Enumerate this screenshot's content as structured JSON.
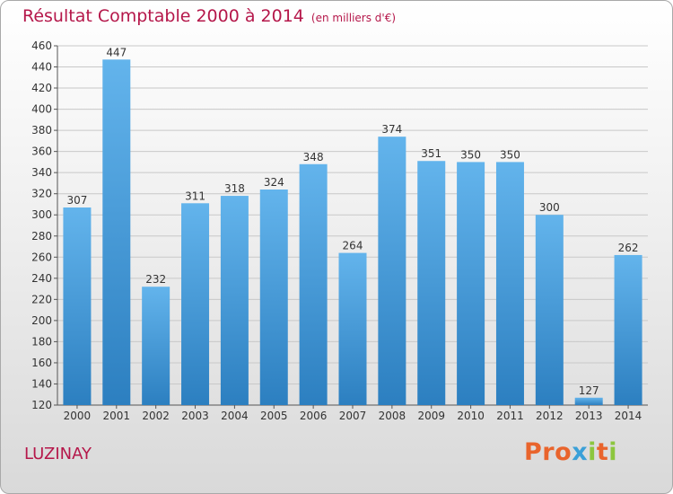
{
  "title": "Résultat Comptable 2000 à 2014",
  "unit": "(en milliers d'€)",
  "place": "LUZINAY",
  "logo": {
    "text": "Proxiti",
    "colors": [
      "#e9642c",
      "#e9642c",
      "#e9642c",
      "#3aa0d8",
      "#8cc63e",
      "#e9642c",
      "#8cc63e"
    ]
  },
  "colors": {
    "bar_top": "#63b4ec",
    "bar_bottom": "#2c7fc0",
    "title": "#b5174a",
    "grid": "#c8c8c8"
  },
  "chart_data": {
    "type": "bar",
    "categories": [
      "2000",
      "2001",
      "2002",
      "2003",
      "2004",
      "2005",
      "2006",
      "2007",
      "2008",
      "2009",
      "2010",
      "2011",
      "2012",
      "2013",
      "2014"
    ],
    "values": [
      307,
      447,
      232,
      311,
      318,
      324,
      348,
      264,
      374,
      351,
      350,
      350,
      300,
      127,
      262
    ],
    "ylim": [
      120,
      460
    ],
    "yticks": [
      120,
      140,
      160,
      180,
      200,
      220,
      240,
      260,
      280,
      300,
      320,
      340,
      360,
      380,
      400,
      420,
      440,
      460
    ],
    "grid": true
  }
}
